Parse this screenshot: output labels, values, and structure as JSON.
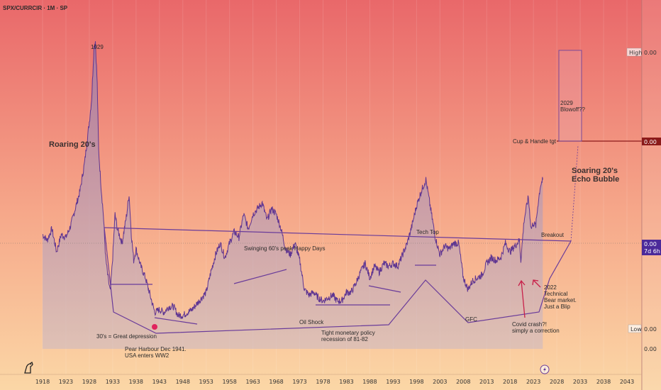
{
  "header": {
    "symbol": "SPX/CURRCIR · 1M · SP"
  },
  "colors": {
    "bgTop": "#e9686a",
    "bgBottom": "#fbd0a0",
    "line": "#6a3c9a",
    "fill": "#b7a2b9",
    "accent": "#8b1a1a",
    "badge": "#4b2a9a",
    "magenta": "#e0245e"
  },
  "right_scale": {
    "high": {
      "label": "High",
      "value": "0.00"
    },
    "tgt_value": "0.00",
    "current_value": "0.00",
    "current_sub": "7d 6h",
    "low": {
      "label": "Low",
      "value": "0.00"
    },
    "bottom_value": "0.00"
  },
  "annotations": {
    "y1929": "1929",
    "roaring": "Roaring 20's",
    "swinging": "Swinging 60's peak Happy Days",
    "techtop": "Tech Top",
    "breakout": "Breakout",
    "cup": "Cup & Handle tgt",
    "blowoff1": "2029",
    "blowoff2": "Blowoff??",
    "soaring1": "Soaring 20's",
    "soaring2": "Echo Bubble",
    "depression": "30's = Great depression",
    "pearl1": "Pear Harbour Dec 1941.",
    "pearl2": "USA enters WW2",
    "oil": "Oil Shock",
    "tight1": "Tight monetary policy",
    "tight2": "recession of 81-82",
    "gfc": "GFC",
    "covid1": "Covid crash?!",
    "covid2": "simply a correction",
    "bear1": "2022",
    "bear2": "Technical",
    "bear3": "Bear market.",
    "bear4": "Just a Blip"
  },
  "chart_data": {
    "type": "line",
    "title": "SPX/CURRCIR · 1M · SP",
    "x_ticks": [
      "1918",
      "1923",
      "1928",
      "1933",
      "1938",
      "1943",
      "1948",
      "1953",
      "1958",
      "1963",
      "1968",
      "1973",
      "1978",
      "1983",
      "1988",
      "1993",
      "1998",
      "2003",
      "2008",
      "2013",
      "2018",
      "2023",
      "2028",
      "2033",
      "2038",
      "2043"
    ],
    "xlim": [
      1914,
      2048
    ],
    "ylim": [
      0,
      1
    ],
    "y_scale_note": "relative ratio; right scale shows 0.00",
    "series": [
      {
        "x": [
          1918,
          1919,
          1920,
          1921,
          1922,
          1923,
          1924,
          1925,
          1926,
          1927,
          1928,
          1928.5,
          1929,
          1929.3,
          1929.7,
          1930,
          1930.5,
          1931,
          1931.5,
          1932,
          1932.5,
          1933,
          1933.5,
          1934,
          1935,
          1936,
          1936.5,
          1937,
          1937.5,
          1938,
          1939,
          1940,
          1941,
          1942,
          1943,
          1944,
          1945,
          1946,
          1947,
          1948,
          1949,
          1950,
          1951,
          1952,
          1953,
          1954,
          1955,
          1956,
          1957,
          1958,
          1959,
          1960,
          1961,
          1962,
          1963,
          1964,
          1965,
          1966,
          1967,
          1968,
          1969,
          1970,
          1971,
          1972,
          1973,
          1974,
          1975,
          1976,
          1977,
          1978,
          1979,
          1980,
          1981,
          1982,
          1983,
          1984,
          1985,
          1986,
          1987,
          1988,
          1989,
          1990,
          1991,
          1992,
          1993,
          1994,
          1995,
          1996,
          1997,
          1998,
          1999,
          2000,
          2001,
          2002,
          2003,
          2004,
          2005,
          2006,
          2007,
          2008,
          2009,
          2010,
          2011,
          2012,
          2013,
          2014,
          2015,
          2016,
          2017,
          2018,
          2019,
          2020,
          2020.3,
          2021,
          2021.9,
          2022.5,
          2023,
          2023.5,
          2024,
          2024.5,
          2025
        ],
        "values": [
          0.33,
          0.31,
          0.35,
          0.27,
          0.33,
          0.32,
          0.36,
          0.42,
          0.48,
          0.58,
          0.72,
          0.8,
          0.98,
          1.0,
          0.85,
          0.62,
          0.5,
          0.4,
          0.25,
          0.18,
          0.13,
          0.25,
          0.4,
          0.35,
          0.3,
          0.4,
          0.47,
          0.33,
          0.24,
          0.28,
          0.22,
          0.18,
          0.12,
          0.06,
          0.07,
          0.06,
          0.08,
          0.08,
          0.05,
          0.05,
          0.06,
          0.07,
          0.09,
          0.11,
          0.13,
          0.2,
          0.26,
          0.3,
          0.25,
          0.3,
          0.34,
          0.32,
          0.4,
          0.35,
          0.4,
          0.42,
          0.44,
          0.38,
          0.42,
          0.4,
          0.35,
          0.28,
          0.26,
          0.3,
          0.24,
          0.14,
          0.12,
          0.13,
          0.11,
          0.1,
          0.11,
          0.12,
          0.1,
          0.1,
          0.13,
          0.13,
          0.16,
          0.2,
          0.23,
          0.18,
          0.22,
          0.2,
          0.23,
          0.22,
          0.23,
          0.22,
          0.26,
          0.3,
          0.36,
          0.43,
          0.48,
          0.52,
          0.42,
          0.32,
          0.26,
          0.29,
          0.28,
          0.3,
          0.3,
          0.18,
          0.14,
          0.17,
          0.18,
          0.19,
          0.23,
          0.25,
          0.24,
          0.25,
          0.3,
          0.27,
          0.29,
          0.31,
          0.24,
          0.38,
          0.46,
          0.35,
          0.37,
          0.36,
          0.44,
          0.5,
          0.52
        ]
      }
    ]
  }
}
